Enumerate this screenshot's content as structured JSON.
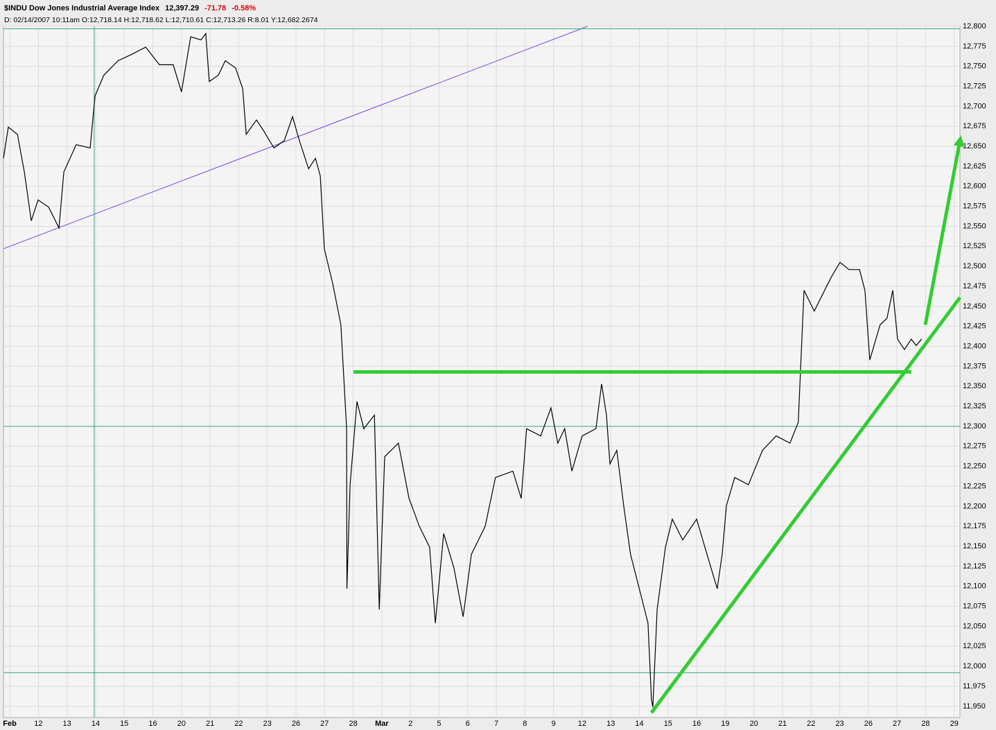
{
  "chart_data": {
    "type": "line",
    "title": "$INDU Dow Jones Industrial Average Index",
    "last": "12,397.29",
    "change": "-71.78",
    "change_pct": "-0.58%",
    "info": "D: 02/14/2007  10:11am O:12,718.14 H:12,718.62 L:12,710.61 C:12,713.26 R:8.01 Y:12,682.2674",
    "xlim": [
      -0.22,
      33.2
    ],
    "ylim": [
      11936,
      12800
    ],
    "xticks": [
      {
        "value": 0,
        "label": "Feb"
      },
      {
        "value": 1,
        "label": "12"
      },
      {
        "value": 2,
        "label": "13"
      },
      {
        "value": 3,
        "label": "14"
      },
      {
        "value": 4,
        "label": "15"
      },
      {
        "value": 5,
        "label": "16"
      },
      {
        "value": 6,
        "label": "20"
      },
      {
        "value": 7,
        "label": "21"
      },
      {
        "value": 8,
        "label": "22"
      },
      {
        "value": 9,
        "label": "23"
      },
      {
        "value": 10,
        "label": "26"
      },
      {
        "value": 11,
        "label": "27"
      },
      {
        "value": 12,
        "label": "28"
      },
      {
        "value": 13,
        "label": "Mar"
      },
      {
        "value": 14,
        "label": "2"
      },
      {
        "value": 15,
        "label": "5"
      },
      {
        "value": 16,
        "label": "6"
      },
      {
        "value": 17,
        "label": "7"
      },
      {
        "value": 18,
        "label": "8"
      },
      {
        "value": 19,
        "label": "9"
      },
      {
        "value": 20,
        "label": "12"
      },
      {
        "value": 21,
        "label": "13"
      },
      {
        "value": 22,
        "label": "14"
      },
      {
        "value": 23,
        "label": "15"
      },
      {
        "value": 24,
        "label": "16"
      },
      {
        "value": 25,
        "label": "19"
      },
      {
        "value": 26,
        "label": "20"
      },
      {
        "value": 27,
        "label": "21"
      },
      {
        "value": 28,
        "label": "22"
      },
      {
        "value": 29,
        "label": "23"
      },
      {
        "value": 30,
        "label": "26"
      },
      {
        "value": 31,
        "label": "27"
      },
      {
        "value": 32,
        "label": "28"
      },
      {
        "value": 33,
        "label": "29"
      }
    ],
    "yticks": [
      {
        "value": 11950,
        "label": "11,950"
      },
      {
        "value": 11975,
        "label": "11,975"
      },
      {
        "value": 12000,
        "label": "12,000"
      },
      {
        "value": 12025,
        "label": "12,025"
      },
      {
        "value": 12050,
        "label": "12,050"
      },
      {
        "value": 12075,
        "label": "12,075"
      },
      {
        "value": 12100,
        "label": "12,100"
      },
      {
        "value": 12125,
        "label": "12,125"
      },
      {
        "value": 12150,
        "label": "12,150"
      },
      {
        "value": 12175,
        "label": "12,175"
      },
      {
        "value": 12200,
        "label": "12,200"
      },
      {
        "value": 12225,
        "label": "12,225"
      },
      {
        "value": 12250,
        "label": "12,250"
      },
      {
        "value": 12275,
        "label": "12,275"
      },
      {
        "value": 12300,
        "label": "12,300"
      },
      {
        "value": 12325,
        "label": "12,325"
      },
      {
        "value": 12350,
        "label": "12,350"
      },
      {
        "value": 12375,
        "label": "12,375"
      },
      {
        "value": 12400,
        "label": "12,400"
      },
      {
        "value": 12425,
        "label": "12,425"
      },
      {
        "value": 12450,
        "label": "12,450"
      },
      {
        "value": 12475,
        "label": "12,475"
      },
      {
        "value": 12500,
        "label": "12,500"
      },
      {
        "value": 12525,
        "label": "12,525"
      },
      {
        "value": 12550,
        "label": "12,550"
      },
      {
        "value": 12575,
        "label": "12,575"
      },
      {
        "value": 12600,
        "label": "12,600"
      },
      {
        "value": 12625,
        "label": "12,625"
      },
      {
        "value": 12650,
        "label": "12,650"
      },
      {
        "value": 12675,
        "label": "12,675"
      },
      {
        "value": 12700,
        "label": "12,700"
      },
      {
        "value": 12725,
        "label": "12,725"
      },
      {
        "value": 12750,
        "label": "12,750"
      },
      {
        "value": 12775,
        "label": "12,775"
      },
      {
        "value": 12800,
        "label": "12,800"
      }
    ],
    "grid": true,
    "color": "#000000",
    "x": [
      -0.22,
      -0.05,
      0.27,
      0.51,
      0.75,
      0.99,
      1.36,
      1.72,
      1.89,
      2.32,
      2.81,
      2.98,
      3.29,
      3.78,
      4.26,
      4.75,
      5.23,
      5.71,
      6.0,
      6.32,
      6.68,
      6.85,
      6.97,
      7.29,
      7.53,
      7.89,
      8.14,
      8.26,
      8.62,
      8.86,
      9.23,
      9.59,
      9.88,
      10.12,
      10.44,
      10.68,
      10.85,
      10.99,
      11.28,
      11.57,
      11.77,
      11.78,
      11.89,
      12.13,
      12.37,
      12.74,
      12.91,
      13.1,
      13.58,
      13.95,
      14.31,
      14.67,
      14.87,
      15.16,
      15.52,
      15.84,
      16.13,
      16.61,
      16.97,
      17.58,
      17.87,
      18.06,
      18.55,
      18.91,
      19.15,
      19.39,
      19.64,
      20.0,
      20.48,
      20.68,
      20.85,
      20.97,
      21.21,
      21.45,
      21.69,
      22.06,
      22.3,
      22.42,
      22.47,
      22.62,
      22.91,
      23.15,
      23.51,
      24.0,
      24.36,
      24.72,
      24.89,
      25.04,
      25.33,
      25.81,
      26.3,
      26.78,
      27.26,
      27.55,
      27.75,
      28.11,
      28.47,
      28.71,
      29.01,
      29.32,
      29.69,
      29.88,
      30.05,
      30.41,
      30.65,
      30.85,
      31.02,
      31.26,
      31.5,
      31.67,
      31.86
    ],
    "values": [
      12635,
      12674,
      12665,
      12618,
      12557,
      12583,
      12574,
      12548,
      12618,
      12652,
      12648,
      12713,
      12739,
      12757,
      12765,
      12774,
      12752,
      12752,
      12718,
      12787,
      12783,
      12791,
      12731,
      12739,
      12757,
      12748,
      12722,
      12665,
      12683,
      12670,
      12648,
      12657,
      12687,
      12657,
      12622,
      12635,
      12613,
      12522,
      12479,
      12427,
      12297,
      12097,
      12227,
      12331,
      12297,
      12314,
      12071,
      12262,
      12279,
      12210,
      12175,
      12149,
      12054,
      12166,
      12123,
      12062,
      12140,
      12175,
      12236,
      12244,
      12210,
      12297,
      12288,
      12323,
      12279,
      12297,
      12244,
      12288,
      12297,
      12353,
      12314,
      12253,
      12270,
      12201,
      12140,
      12088,
      12054,
      11958,
      11949,
      12071,
      12149,
      12184,
      12158,
      12184,
      12140,
      12097,
      12140,
      12201,
      12236,
      12227,
      12270,
      12288,
      12279,
      12305,
      12470,
      12444,
      12470,
      12487,
      12505,
      12496,
      12496,
      12470,
      12383,
      12427,
      12435,
      12470,
      12409,
      12396,
      12409,
      12401,
      12409
    ],
    "lines": [
      {
        "color": "#7b3fe4",
        "x": [
          -0.22,
          20.19
        ],
        "values": [
          12522,
          12800
        ],
        "arrow": false,
        "width": 1
      },
      {
        "color": "#33cc33",
        "x": [
          12.01,
          31.5
        ],
        "values": [
          12368,
          12368
        ],
        "arrow": false,
        "width": 5
      },
      {
        "color": "#33cc33",
        "x": [
          22.42,
          33.2
        ],
        "values": [
          11942,
          12461
        ],
        "arrow": false,
        "width": 5
      },
      {
        "color": "#33cc33",
        "x": [
          31.99,
          33.2
        ],
        "values": [
          12427,
          12657
        ],
        "arrow": true,
        "width": 5
      },
      {
        "color": "#3aa57a",
        "x": [
          -0.22,
          33.2
        ],
        "values": [
          12797,
          12797
        ],
        "arrow": false,
        "width": 1
      },
      {
        "color": "#3aa57a",
        "x": [
          -0.22,
          33.2
        ],
        "values": [
          12300,
          12300
        ],
        "arrow": false,
        "width": 1
      },
      {
        "color": "#3aa57a",
        "x": [
          -0.22,
          33.2
        ],
        "values": [
          11992,
          11992
        ],
        "arrow": false,
        "width": 1
      },
      {
        "color": "#3aa57a",
        "x": [
          2.95,
          2.95
        ],
        "values": [
          11936,
          12800
        ],
        "arrow": false,
        "width": 1
      }
    ]
  }
}
